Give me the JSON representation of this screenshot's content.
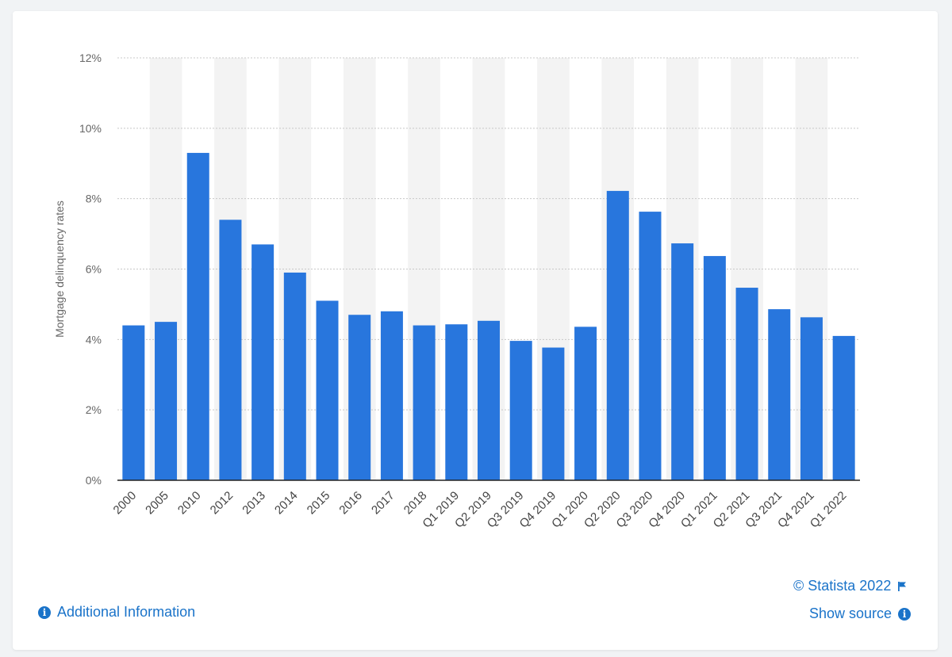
{
  "chart_data": {
    "type": "bar",
    "ylabel": "Mortgage delinquency rates",
    "xlabel": "",
    "ylim": [
      0,
      12
    ],
    "yticks": [
      "0%",
      "2%",
      "4%",
      "6%",
      "8%",
      "10%",
      "12%"
    ],
    "ytick_values": [
      0,
      2,
      4,
      6,
      8,
      10,
      12
    ],
    "categories": [
      "2000",
      "2005",
      "2010",
      "2012",
      "2013",
      "2014",
      "2015",
      "2016",
      "2017",
      "2018",
      "Q1 2019",
      "Q2 2019",
      "Q3 2019",
      "Q4 2019",
      "Q1 2020",
      "Q2 2020",
      "Q3 2020",
      "Q4 2020",
      "Q1 2021",
      "Q2 2021",
      "Q3 2021",
      "Q4 2021",
      "Q1 2022"
    ],
    "values": [
      4.4,
      4.5,
      9.3,
      7.4,
      6.7,
      5.9,
      5.1,
      4.7,
      4.8,
      4.4,
      4.43,
      4.53,
      3.96,
      3.77,
      4.36,
      8.22,
      7.63,
      6.73,
      6.37,
      5.47,
      4.86,
      4.63,
      4.1
    ],
    "bar_color": "#2876dd",
    "band_color": "#f3f3f3",
    "grid": true
  },
  "footer": {
    "copyright": "© Statista 2022",
    "show_source": "Show source",
    "additional_info": "Additional Information",
    "info_glyph": "i",
    "link_color": "#1a73c9"
  }
}
